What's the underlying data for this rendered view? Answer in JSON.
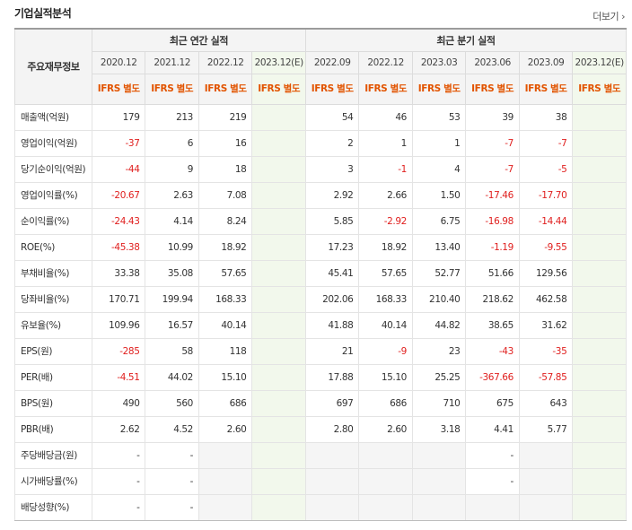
{
  "title": "기업실적분석",
  "more_label": "더보기",
  "more_icon": "chevron-right-icon",
  "header": {
    "item_label": "주요재무정보",
    "annual_group": "최근 연간 실적",
    "quarter_group": "최근 분기 실적",
    "annual_periods": [
      "2020.12",
      "2021.12",
      "2022.12",
      "2023.12(E)"
    ],
    "quarter_periods": [
      "2022.09",
      "2022.12",
      "2023.03",
      "2023.06",
      "2023.09",
      "2023.12(E)"
    ],
    "standard_annual": [
      "IFRS 별도",
      "IFRS 별도",
      "IFRS 별도",
      "IFRS 별도"
    ],
    "standard_quarter": [
      "IFRS 별도",
      "IFRS 별도",
      "IFRS 별도",
      "IFRS 별도",
      "IFRS 별도",
      "IFRS 별도"
    ]
  },
  "colors": {
    "negative": "#e0201f",
    "accent": "#e25400",
    "estimate": "#2d9a3f"
  },
  "rows": [
    {
      "label": "매출액(억원)",
      "cells": [
        "179",
        "213",
        "219",
        "",
        "54",
        "46",
        "53",
        "39",
        "38",
        ""
      ],
      "group_start": true
    },
    {
      "label": "영업이익(억원)",
      "cells": [
        "-37",
        "6",
        "16",
        "",
        "2",
        "1",
        "1",
        "-7",
        "-7",
        ""
      ]
    },
    {
      "label": "당기순이익(억원)",
      "cells": [
        "-44",
        "9",
        "18",
        "",
        "3",
        "-1",
        "4",
        "-7",
        "-5",
        ""
      ]
    },
    {
      "label": "영업이익률(%)",
      "cells": [
        "-20.67",
        "2.63",
        "7.08",
        "",
        "2.92",
        "2.66",
        "1.50",
        "-17.46",
        "-17.70",
        ""
      ],
      "group_start": true
    },
    {
      "label": "순이익률(%)",
      "cells": [
        "-24.43",
        "4.14",
        "8.24",
        "",
        "5.85",
        "-2.92",
        "6.75",
        "-16.98",
        "-14.44",
        ""
      ]
    },
    {
      "label": "ROE(%)",
      "cells": [
        "-45.38",
        "10.99",
        "18.92",
        "",
        "17.23",
        "18.92",
        "13.40",
        "-1.19",
        "-9.55",
        ""
      ]
    },
    {
      "label": "부채비율(%)",
      "cells": [
        "33.38",
        "35.08",
        "57.65",
        "",
        "45.41",
        "57.65",
        "52.77",
        "51.66",
        "129.56",
        ""
      ],
      "group_start": true
    },
    {
      "label": "당좌비율(%)",
      "cells": [
        "170.71",
        "199.94",
        "168.33",
        "",
        "202.06",
        "168.33",
        "210.40",
        "218.62",
        "462.58",
        ""
      ]
    },
    {
      "label": "유보율(%)",
      "cells": [
        "109.96",
        "16.57",
        "40.14",
        "",
        "41.88",
        "40.14",
        "44.82",
        "38.65",
        "31.62",
        ""
      ]
    },
    {
      "label": "EPS(원)",
      "cells": [
        "-285",
        "58",
        "118",
        "",
        "21",
        "-9",
        "23",
        "-43",
        "-35",
        ""
      ],
      "group_start": true
    },
    {
      "label": "PER(배)",
      "cells": [
        "-4.51",
        "44.02",
        "15.10",
        "",
        "17.88",
        "15.10",
        "25.25",
        "-367.66",
        "-57.85",
        ""
      ]
    },
    {
      "label": "BPS(원)",
      "cells": [
        "490",
        "560",
        "686",
        "",
        "697",
        "686",
        "710",
        "675",
        "643",
        ""
      ]
    },
    {
      "label": "PBR(배)",
      "cells": [
        "2.62",
        "4.52",
        "2.60",
        "",
        "2.80",
        "2.60",
        "3.18",
        "4.41",
        "5.77",
        ""
      ]
    },
    {
      "label": "주당배당금(원)",
      "cells": [
        "-",
        "-",
        "",
        "",
        "",
        "",
        "",
        "-",
        "",
        ""
      ],
      "group_start": true,
      "blank": [
        2,
        3,
        4,
        5,
        6,
        8,
        9
      ]
    },
    {
      "label": "시가배당률(%)",
      "cells": [
        "-",
        "-",
        "",
        "",
        "",
        "",
        "",
        "-",
        "",
        ""
      ],
      "blank": [
        2,
        3,
        4,
        5,
        6,
        8,
        9
      ]
    },
    {
      "label": "배당성향(%)",
      "cells": [
        "-",
        "-",
        "",
        "",
        "",
        "",
        "",
        "",
        "",
        ""
      ],
      "blank": [
        2,
        3,
        4,
        5,
        6,
        7,
        8,
        9
      ],
      "last": true
    }
  ]
}
